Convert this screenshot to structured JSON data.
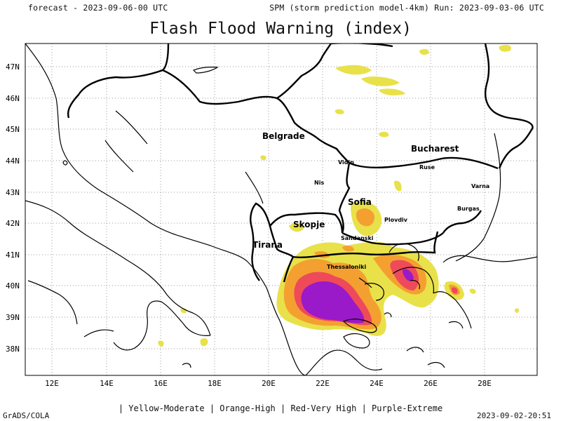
{
  "header": {
    "left": "forecast - 2023-09-06-00 UTC",
    "right": "SPM (storm prediction model-4km) Run: 2023-09-03-06 UTC"
  },
  "title": "Flash Flood Warning (index)",
  "lat_ticks": [
    "47N",
    "46N",
    "45N",
    "44N",
    "43N",
    "42N",
    "41N",
    "40N",
    "39N",
    "38N"
  ],
  "lon_ticks": [
    "12E",
    "14E",
    "16E",
    "18E",
    "20E",
    "22E",
    "24E",
    "26E",
    "28E"
  ],
  "cities": {
    "belgrade": "Belgrade",
    "bucharest": "Bucharest",
    "vidin": "Vidin",
    "ruse": "Ruse",
    "nis": "Nis",
    "varna": "Varna",
    "sofia": "Sofia",
    "burgas": "Burgas",
    "skopje": "Skopje",
    "plovdiv": "Plovdiv",
    "sandanski": "Sandanski",
    "tirana": "Tirana",
    "thessaloniki": "Thessaloniki"
  },
  "legend": "| Yellow-Moderate | Orange-High | Red-Very High | Purple-Extreme",
  "footer": {
    "left": "GrADS/COLA",
    "right": "2023-09-02-20:51"
  },
  "colors": {
    "moderate": "#e8e14a",
    "high": "#f4a031",
    "very_high": "#ee4a5a",
    "extreme": "#9a19c8"
  }
}
